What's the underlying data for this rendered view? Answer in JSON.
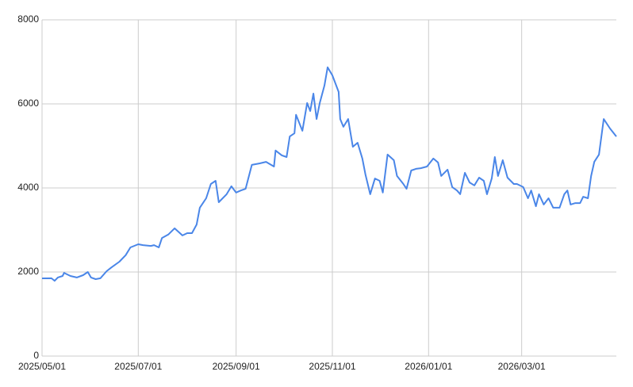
{
  "chart_data": {
    "type": "line",
    "x": [
      "2025/05/01",
      "2025/05/07",
      "2025/05/09",
      "2025/05/11",
      "2025/05/14",
      "2025/05/15",
      "2025/05/19",
      "2025/05/23",
      "2025/05/27",
      "2025/05/30",
      "2025/06/01",
      "2025/06/04",
      "2025/06/07",
      "2025/06/11",
      "2025/06/14",
      "2025/06/19",
      "2025/06/23",
      "2025/06/26",
      "2025/07/01",
      "2025/07/04",
      "2025/07/09",
      "2025/07/11",
      "2025/07/14",
      "2025/07/16",
      "2025/07/20",
      "2025/07/24",
      "2025/07/29",
      "2025/08/01",
      "2025/08/04",
      "2025/08/07",
      "2025/08/09",
      "2025/08/13",
      "2025/08/16",
      "2025/08/19",
      "2025/08/21",
      "2025/08/26",
      "2025/08/29",
      "2025/09/01",
      "2025/09/04",
      "2025/09/07",
      "2025/09/11",
      "2025/09/16",
      "2025/09/20",
      "2025/09/25",
      "2025/09/26",
      "2025/09/30",
      "2025/10/03",
      "2025/10/05",
      "2025/10/08",
      "2025/10/09",
      "2025/10/13",
      "2025/10/16",
      "2025/10/18",
      "2025/10/20",
      "2025/10/22",
      "2025/10/24",
      "2025/10/27",
      "2025/10/29",
      "2025/11/01",
      "2025/11/05",
      "2025/11/06",
      "2025/11/08",
      "2025/11/11",
      "2025/11/14",
      "2025/11/17",
      "2025/11/20",
      "2025/11/22",
      "2025/11/25",
      "2025/11/28",
      "2025/12/01",
      "2025/12/03",
      "2025/12/06",
      "2025/12/10",
      "2025/12/12",
      "2025/12/16",
      "2025/12/18",
      "2025/12/21",
      "2025/12/24",
      "2025/12/27",
      "2025/12/31",
      "2026/01/04",
      "2026/01/07",
      "2026/01/09",
      "2026/01/13",
      "2026/01/16",
      "2026/01/19",
      "2026/01/21",
      "2026/01/24",
      "2026/01/27",
      "2026/01/30",
      "2026/02/02",
      "2026/02/05",
      "2026/02/07",
      "2026/02/10",
      "2026/02/12",
      "2026/02/14",
      "2026/02/17",
      "2026/02/20",
      "2026/02/24",
      "2026/02/26",
      "2026/03/02",
      "2026/03/05",
      "2026/03/07",
      "2026/03/10",
      "2026/03/12",
      "2026/03/15",
      "2026/03/18",
      "2026/03/21",
      "2026/03/25",
      "2026/03/28",
      "2026/03/30",
      "2026/04/01",
      "2026/04/04",
      "2026/04/07",
      "2026/04/09",
      "2026/04/12",
      "2026/04/14",
      "2026/04/16",
      "2026/04/19",
      "2026/04/22",
      "2026/04/26",
      "2026/04/30"
    ],
    "series": [
      {
        "color": "#4a86e8",
        "values": [
          1849,
          1850,
          1790,
          1870,
          1905,
          1980,
          1905,
          1870,
          1925,
          2000,
          1870,
          1830,
          1850,
          2020,
          2110,
          2245,
          2400,
          2585,
          2660,
          2640,
          2620,
          2640,
          2585,
          2810,
          2890,
          3040,
          2870,
          2925,
          2925,
          3130,
          3530,
          3755,
          4095,
          4170,
          3660,
          3850,
          4040,
          3890,
          3940,
          3980,
          4550,
          4585,
          4620,
          4510,
          4890,
          4775,
          4735,
          5225,
          5300,
          5740,
          5360,
          6020,
          5830,
          6245,
          5640,
          6020,
          6435,
          6870,
          6680,
          6285,
          5640,
          5455,
          5640,
          4980,
          5075,
          4700,
          4320,
          3850,
          4225,
          4170,
          3890,
          4795,
          4660,
          4285,
          4095,
          3980,
          4415,
          4455,
          4470,
          4510,
          4700,
          4605,
          4285,
          4435,
          4020,
          3940,
          3850,
          4360,
          4130,
          4060,
          4245,
          4170,
          3850,
          4225,
          4735,
          4285,
          4660,
          4245,
          4095,
          4095,
          4020,
          3755,
          3940,
          3565,
          3850,
          3605,
          3755,
          3530,
          3530,
          3850,
          3940,
          3605,
          3640,
          3640,
          3790,
          3755,
          4285,
          4620,
          4795,
          5640,
          5415,
          5225
        ]
      }
    ],
    "xlim": [
      "2025/05/01",
      "2026/04/30"
    ],
    "xticks": [
      "2025/05/01",
      "2025/07/01",
      "2025/09/01",
      "2025/11/01",
      "2026/01/01",
      "2026/03/01"
    ],
    "ylim": [
      0,
      8000
    ],
    "yticks": [
      0,
      2000,
      4000,
      6000,
      8000
    ],
    "grid": true
  }
}
